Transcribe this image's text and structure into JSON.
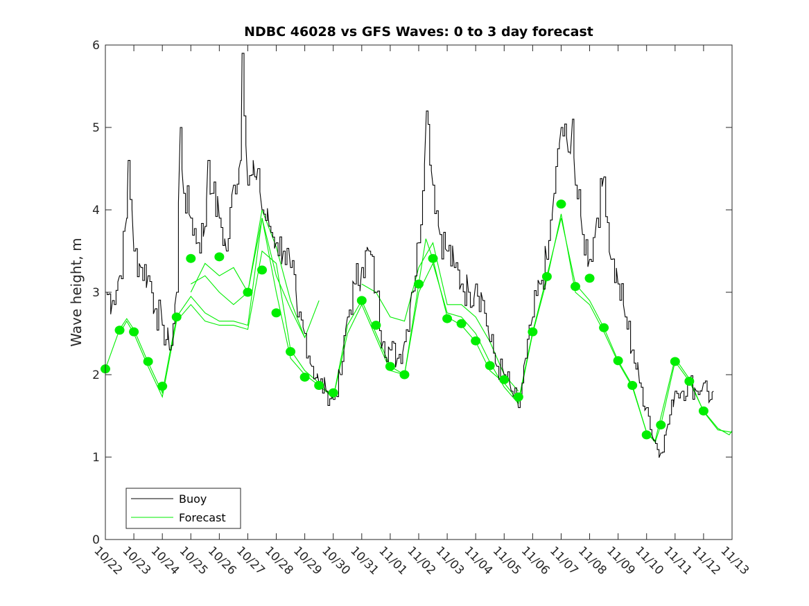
{
  "chart_data": {
    "type": "line",
    "title": "NDBC 46028 vs GFS Waves: 0 to 3 day forecast",
    "xlabel": "",
    "ylabel": "Wave height, m",
    "ylim": [
      0,
      6
    ],
    "yticks": [
      0,
      1,
      2,
      3,
      4,
      5,
      6
    ],
    "xlim_days": [
      0,
      22
    ],
    "xtick_labels": [
      "10/22",
      "10/23",
      "10/24",
      "10/25",
      "10/26",
      "10/27",
      "10/28",
      "10/29",
      "10/30",
      "10/31",
      "11/01",
      "11/02",
      "11/03",
      "11/04",
      "11/05",
      "11/06",
      "11/07",
      "11/08",
      "11/09",
      "11/10",
      "11/11",
      "11/12",
      "11/13"
    ],
    "legend": {
      "placement": "bottom-left",
      "entries": [
        "Buoy",
        "Forecast"
      ]
    },
    "colors": {
      "buoy": "#000000",
      "forecast": "#00ee00"
    },
    "buoy": {
      "name": "Buoy",
      "x": [
        0,
        0.25,
        0.5,
        0.75,
        0.8,
        1.0,
        1.25,
        1.5,
        1.75,
        2.0,
        2.25,
        2.5,
        2.63,
        2.75,
        3.0,
        3.25,
        3.5,
        3.6,
        3.75,
        4.0,
        4.25,
        4.5,
        4.75,
        4.8,
        5.0,
        5.25,
        5.35,
        5.5,
        5.75,
        6.0,
        6.25,
        6.5,
        6.75,
        7.0,
        7.25,
        7.5,
        7.75,
        8.0,
        8.25,
        8.5,
        8.75,
        9.0,
        9.25,
        9.5,
        9.75,
        10.0,
        10.25,
        10.5,
        10.75,
        11.0,
        11.27,
        11.5,
        11.75,
        12.0,
        12.25,
        12.5,
        12.75,
        13.0,
        13.25,
        13.5,
        13.75,
        14.0,
        14.25,
        14.5,
        14.75,
        15.0,
        15.25,
        15.5,
        15.75,
        16.0,
        16.25,
        16.4,
        16.5,
        16.75,
        17.0,
        17.25,
        17.5,
        17.75,
        18.0,
        18.25,
        18.5,
        18.75,
        19.0,
        19.25,
        19.5,
        19.75,
        20.0,
        20.25,
        20.5,
        20.75,
        21.0,
        21.25,
        21.35
      ],
      "y": [
        3.0,
        2.9,
        3.2,
        3.9,
        4.6,
        3.5,
        3.3,
        3.2,
        2.8,
        2.6,
        2.3,
        3.0,
        5.0,
        4.2,
        3.9,
        3.6,
        3.8,
        4.6,
        4.2,
        3.9,
        3.5,
        4.3,
        4.6,
        5.9,
        4.3,
        4.4,
        4.5,
        4.0,
        3.8,
        3.6,
        3.5,
        3.3,
        2.7,
        2.5,
        2.1,
        1.9,
        1.8,
        1.7,
        2.0,
        2.7,
        3.1,
        3.3,
        3.5,
        3.0,
        2.4,
        2.3,
        2.2,
        2.4,
        3.0,
        3.6,
        5.2,
        4.3,
        3.7,
        3.5,
        3.3,
        3.1,
        3.0,
        3.1,
        2.9,
        2.4,
        2.1,
        2.0,
        1.8,
        1.6,
        2.2,
        2.7,
        3.1,
        3.4,
        4.2,
        5.0,
        4.7,
        5.1,
        4.3,
        3.7,
        3.4,
        3.9,
        4.4,
        3.4,
        3.1,
        2.7,
        2.3,
        1.9,
        1.6,
        1.2,
        1.05,
        1.4,
        1.8,
        1.8,
        1.9,
        1.8,
        1.9,
        1.7,
        1.8
      ]
    },
    "forecast_points": {
      "name": "Forecast",
      "x": [
        0,
        0.5,
        1,
        1.5,
        2,
        2.5,
        3,
        4,
        5,
        5.5,
        6,
        6.5,
        7,
        7.5,
        8,
        9,
        9.5,
        10,
        10.5,
        11,
        11.5,
        12,
        12.5,
        13,
        13.5,
        14,
        14.5,
        15,
        15.5,
        16,
        16.5,
        17,
        17.5,
        18,
        18.5,
        19,
        19.5,
        20,
        20.5,
        21
      ],
      "y": [
        2.07,
        2.54,
        2.52,
        2.16,
        1.86,
        2.7,
        3.41,
        3.43,
        3.0,
        3.27,
        2.75,
        2.28,
        1.97,
        1.87,
        1.78,
        2.9,
        2.6,
        2.1,
        2.0,
        3.1,
        3.41,
        2.68,
        2.62,
        2.41,
        2.11,
        1.94,
        1.73,
        2.52,
        3.19,
        4.07,
        3.07,
        3.17,
        2.57,
        2.17,
        1.87,
        1.27,
        1.39,
        2.16,
        1.92,
        1.56
      ]
    },
    "forecast_runs": [
      {
        "x": [
          0,
          0.5,
          0.75,
          1,
          1.5,
          2,
          2.5,
          3,
          3.5,
          4,
          4.5,
          5,
          5.5,
          6,
          6.5,
          7,
          7.5,
          8,
          8.5,
          9,
          9.5,
          10,
          10.5,
          11,
          11.25,
          11.5,
          12,
          12.5,
          13,
          13.5,
          14,
          14.5,
          15,
          15.5,
          16,
          16.5,
          17,
          17.5,
          18,
          18.5,
          19,
          19.3,
          19.5,
          20,
          20.5,
          21,
          21.5,
          21.9,
          22
        ],
        "y": [
          2.07,
          2.55,
          2.68,
          2.55,
          2.15,
          1.78,
          2.7,
          2.95,
          2.75,
          2.65,
          2.65,
          2.6,
          3.9,
          3.0,
          2.2,
          2.0,
          1.87,
          1.72,
          2.6,
          2.9,
          2.5,
          2.1,
          2.0,
          3.1,
          3.65,
          3.4,
          2.7,
          2.6,
          2.4,
          2.05,
          1.9,
          1.68,
          2.52,
          3.2,
          3.9,
          3.1,
          2.9,
          2.57,
          2.17,
          1.87,
          1.3,
          1.18,
          1.39,
          2.16,
          1.92,
          1.56,
          1.35,
          1.27,
          1.32
        ]
      },
      {
        "x": [
          0.5,
          0.75,
          1,
          1.5,
          2,
          2.5,
          3,
          3.5,
          4,
          4.5,
          5,
          5.5,
          6,
          6.5,
          7,
          7.5,
          8,
          8.5,
          9,
          9.5,
          10,
          10.5,
          11,
          11.5,
          12,
          12.5,
          13,
          13.5,
          14,
          14.5,
          15,
          15.5,
          16,
          16.5,
          17,
          17.5,
          18,
          18.5,
          19,
          19.3,
          20,
          20.5,
          21,
          21.5,
          22
        ],
        "y": [
          2.5,
          2.65,
          2.5,
          2.1,
          1.73,
          2.65,
          2.85,
          2.65,
          2.6,
          2.6,
          2.55,
          3.5,
          3.35,
          2.3,
          2.05,
          1.9,
          1.72,
          2.5,
          2.85,
          2.45,
          2.05,
          2.0,
          3.0,
          3.35,
          2.75,
          2.7,
          2.5,
          2.15,
          1.85,
          1.65,
          2.5,
          3.15,
          3.95,
          3.0,
          2.85,
          2.52,
          2.15,
          1.85,
          1.3,
          1.2,
          2.2,
          1.95,
          1.55,
          1.33,
          1.3
        ]
      },
      {
        "x": [
          3,
          3.5,
          4,
          4.5,
          5,
          5.5,
          6,
          6.5,
          7,
          7.5
        ],
        "y": [
          3.1,
          3.2,
          3.0,
          2.85,
          3.0,
          3.9,
          3.2,
          2.8,
          2.45,
          2.9
        ]
      },
      {
        "x": [
          3,
          3.5,
          4,
          4.5,
          5,
          5.5,
          6,
          6.5,
          7
        ],
        "y": [
          3.0,
          3.35,
          3.2,
          3.3,
          3.0,
          4.0,
          3.55,
          2.9,
          2.45
        ]
      },
      {
        "x": [
          9,
          9.5,
          10,
          10.5,
          11,
          11.5,
          12,
          12.5,
          13,
          13.5,
          14,
          14.5
        ],
        "y": [
          3.1,
          3.0,
          2.7,
          2.65,
          3.3,
          3.6,
          2.85,
          2.85,
          2.7,
          2.4,
          2.0,
          1.8
        ]
      }
    ]
  }
}
